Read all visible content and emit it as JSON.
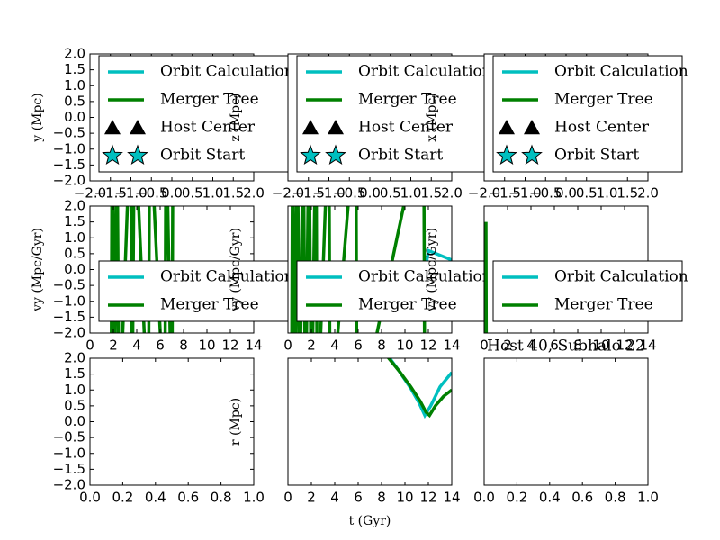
{
  "chart_data": [
    {
      "type": "line",
      "ylabel": "y (Mpc)",
      "xlim": [
        -2,
        2
      ],
      "ylim": [
        -2,
        2
      ],
      "legend": "upper left",
      "xticks": [
        {
          "value": -2,
          "label": "−2.0"
        },
        {
          "value": -1.5,
          "label": "−1.5"
        },
        {
          "value": -1,
          "label": "−1.0"
        },
        {
          "value": -0.5,
          "label": "−0.5"
        },
        {
          "value": 0,
          "label": "0.0"
        },
        {
          "value": 0.5,
          "label": "0.5"
        },
        {
          "value": 1,
          "label": "1.0"
        },
        {
          "value": 1.5,
          "label": "1.5"
        },
        {
          "value": 2,
          "label": "2.0"
        }
      ],
      "yticks": [
        {
          "value": 2,
          "label": "2.0"
        },
        {
          "value": 1.5,
          "label": "1.5"
        },
        {
          "value": 1,
          "label": "1.0"
        },
        {
          "value": 0.5,
          "label": "0.5"
        },
        {
          "value": 0,
          "label": "0.0"
        },
        {
          "value": -0.5,
          "label": "−0.5"
        },
        {
          "value": -1,
          "label": "−1.0"
        },
        {
          "value": -1.5,
          "label": "−1.5"
        },
        {
          "value": -2,
          "label": "−2.0"
        }
      ],
      "series": [
        {
          "name": "Orbit Calculation",
          "color": "#00bfbf",
          "x": [],
          "values": []
        },
        {
          "name": "Merger Tree",
          "color": "#008000",
          "x": [],
          "values": []
        },
        {
          "name": "Host Center",
          "color": "#000000",
          "marker": "triangle",
          "x": [],
          "values": []
        },
        {
          "name": "Orbit Start",
          "color": "#00bfbf",
          "marker": "star",
          "x": [],
          "values": []
        }
      ]
    },
    {
      "type": "line",
      "ylabel": "z (Mpc)",
      "xlim": [
        -2,
        2
      ],
      "ylim": [
        -2,
        2
      ],
      "legend": "upper left",
      "xticks": [
        {
          "value": -2,
          "label": "−2.0"
        },
        {
          "value": -1.5,
          "label": "−1.5"
        },
        {
          "value": -1,
          "label": "−1.0"
        },
        {
          "value": -0.5,
          "label": "−0.5"
        },
        {
          "value": 0,
          "label": "0.0"
        },
        {
          "value": 0.5,
          "label": "0.5"
        },
        {
          "value": 1,
          "label": "1.0"
        },
        {
          "value": 1.5,
          "label": "1.5"
        },
        {
          "value": 2,
          "label": "2.0"
        }
      ],
      "yticks": [],
      "series": [
        {
          "name": "Orbit Calculation",
          "color": "#00bfbf",
          "x": [],
          "values": []
        },
        {
          "name": "Merger Tree",
          "color": "#008000",
          "x": [],
          "values": []
        },
        {
          "name": "Host Center",
          "color": "#000000",
          "marker": "triangle",
          "x": [],
          "values": []
        },
        {
          "name": "Orbit Start",
          "color": "#00bfbf",
          "marker": "star",
          "x": [],
          "values": []
        }
      ]
    },
    {
      "type": "line",
      "ylabel": "x (Mpc)",
      "xlim": [
        -2,
        2
      ],
      "ylim": [
        -2,
        2
      ],
      "legend": "upper left",
      "xticks": [
        {
          "value": -2,
          "label": "−2.0"
        },
        {
          "value": -1.5,
          "label": "−1.5"
        },
        {
          "value": -1,
          "label": "−1.0"
        },
        {
          "value": -0.5,
          "label": "−0.5"
        },
        {
          "value": 0,
          "label": "0.0"
        },
        {
          "value": 0.5,
          "label": "0.5"
        },
        {
          "value": 1,
          "label": "1.0"
        },
        {
          "value": 1.5,
          "label": "1.5"
        },
        {
          "value": 2,
          "label": "2.0"
        }
      ],
      "yticks": [],
      "series": [
        {
          "name": "Orbit Calculation",
          "color": "#00bfbf",
          "x": [],
          "values": []
        },
        {
          "name": "Merger Tree",
          "color": "#008000",
          "x": [],
          "values": []
        },
        {
          "name": "Host Center",
          "color": "#000000",
          "marker": "triangle",
          "x": [],
          "values": []
        },
        {
          "name": "Orbit Start",
          "color": "#00bfbf",
          "marker": "star",
          "x": [],
          "values": []
        }
      ]
    },
    {
      "type": "line",
      "ylabel": "vy (Mpc/Gyr)",
      "xlim": [
        0,
        14
      ],
      "ylim": [
        -2,
        2
      ],
      "legend": "lower left",
      "xticks": [
        0,
        2,
        4,
        6,
        8,
        10,
        12,
        14
      ],
      "yticks": [
        {
          "value": 2,
          "label": "2.0"
        },
        {
          "value": 1.5,
          "label": "1.5"
        },
        {
          "value": 1,
          "label": "1.0"
        },
        {
          "value": 0.5,
          "label": "0.5"
        },
        {
          "value": 0,
          "label": "0.0"
        },
        {
          "value": -0.5,
          "label": "−0.5"
        },
        {
          "value": -1,
          "label": "−1.0"
        },
        {
          "value": -1.5,
          "label": "−1.5"
        },
        {
          "value": -2,
          "label": "−2.0"
        }
      ],
      "series": [
        {
          "name": "Orbit Calculation",
          "color": "#00bfbf",
          "x": [],
          "values": []
        },
        {
          "name": "Merger Tree",
          "color": "#008000",
          "x": [
            1.8,
            1.9,
            2.1,
            2.3,
            2.5,
            3.5,
            3.6,
            3.8,
            5.0,
            5.1,
            6.4,
            6.5,
            7.0,
            7.1
          ],
          "values": [
            -5,
            5,
            -5,
            5,
            -5,
            5,
            -5,
            5,
            -5,
            5,
            -5,
            5,
            -5,
            5
          ]
        }
      ]
    },
    {
      "type": "line",
      "ylabel": "vy (Mpc/Gyr)",
      "xlim": [
        0,
        14
      ],
      "ylim": [
        -2,
        2
      ],
      "legend": "lower left",
      "xticks": [
        0,
        2,
        4,
        6,
        8,
        10,
        12,
        14
      ],
      "yticks": [],
      "series": [
        {
          "name": "Orbit Calculation",
          "color": "#00bfbf",
          "x": [
            11.8,
            12.0,
            13.0,
            14.0
          ],
          "values": [
            0.1,
            0.6,
            0.45,
            0.3
          ]
        },
        {
          "name": "Merger Tree",
          "color": "#008000",
          "x": [
            0.3,
            0.4,
            0.6,
            0.8,
            1.0,
            1.3,
            1.5,
            1.8,
            2.0,
            2.4,
            2.5,
            3.5,
            3.6,
            5.8,
            5.9,
            11.6,
            11.7
          ],
          "values": [
            -5,
            5,
            -5,
            5,
            -5,
            5,
            -5,
            5,
            -5,
            5,
            -5,
            5,
            -5,
            5,
            -5,
            5,
            -5
          ]
        }
      ]
    },
    {
      "type": "line",
      "ylabel": "vy (Mpc/Gyr)",
      "xlim": [
        0,
        14
      ],
      "ylim": [
        -2,
        2
      ],
      "legend": "lower left",
      "xticks": [
        0,
        2,
        4,
        6,
        8,
        10,
        12,
        14
      ],
      "yticks": [],
      "series": [
        {
          "name": "Orbit Calculation",
          "color": "#00bfbf",
          "x": [],
          "values": []
        },
        {
          "name": "Merger Tree",
          "color": "#008000",
          "x": [
            0.1,
            0.15,
            0.2
          ],
          "values": [
            -5,
            1.5,
            -5
          ]
        }
      ]
    },
    {
      "type": "line",
      "xlim": [
        0,
        1
      ],
      "ylim": [
        -2,
        2
      ],
      "xticks": [
        {
          "value": 0,
          "label": "0.0"
        },
        {
          "value": 0.2,
          "label": "0.2"
        },
        {
          "value": 0.4,
          "label": "0.4"
        },
        {
          "value": 0.6,
          "label": "0.6"
        },
        {
          "value": 0.8,
          "label": "0.8"
        },
        {
          "value": 1,
          "label": "1.0"
        }
      ],
      "yticks": [
        {
          "value": 2,
          "label": "2.0"
        },
        {
          "value": 1.5,
          "label": "1.5"
        },
        {
          "value": 1,
          "label": "1.0"
        },
        {
          "value": 0.5,
          "label": "0.5"
        },
        {
          "value": 0,
          "label": "0.0"
        },
        {
          "value": -0.5,
          "label": "−0.5"
        },
        {
          "value": -1,
          "label": "−1.0"
        },
        {
          "value": -1.5,
          "label": "−1.5"
        },
        {
          "value": -2,
          "label": "−2.0"
        }
      ],
      "series": []
    },
    {
      "type": "line",
      "ylabel": "r (Mpc)",
      "xlabel": "t (Gyr)",
      "xlim": [
        0,
        14
      ],
      "ylim": [
        -2,
        2
      ],
      "xticks": [
        0,
        2,
        4,
        6,
        8,
        10,
        12,
        14
      ],
      "yticks": [],
      "series": [
        {
          "name": "Orbit Calculation",
          "color": "#00bfbf",
          "x": [
            8.5,
            9.5,
            10.5,
            11.2,
            11.7,
            12.2,
            13.0,
            14.0
          ],
          "values": [
            2.1,
            1.6,
            1.05,
            0.6,
            0.2,
            0.5,
            1.1,
            1.55
          ]
        },
        {
          "name": "Merger Tree",
          "color": "#008000",
          "x": [
            8.5,
            9.5,
            10.5,
            11.3,
            11.8,
            12.1,
            12.6,
            13.3,
            14.0
          ],
          "values": [
            2.05,
            1.6,
            1.1,
            0.65,
            0.3,
            0.2,
            0.5,
            0.8,
            1.0
          ]
        }
      ]
    },
    {
      "type": "line",
      "title": "Host 40, Subhalo 22",
      "xlim": [
        0,
        1
      ],
      "ylim": [
        -2,
        2
      ],
      "xticks": [
        {
          "value": 0,
          "label": "0.0"
        },
        {
          "value": 0.2,
          "label": "0.2"
        },
        {
          "value": 0.4,
          "label": "0.4"
        },
        {
          "value": 0.6,
          "label": "0.6"
        },
        {
          "value": 0.8,
          "label": "0.8"
        },
        {
          "value": 1,
          "label": "1.0"
        }
      ],
      "yticks": [],
      "series": []
    }
  ]
}
